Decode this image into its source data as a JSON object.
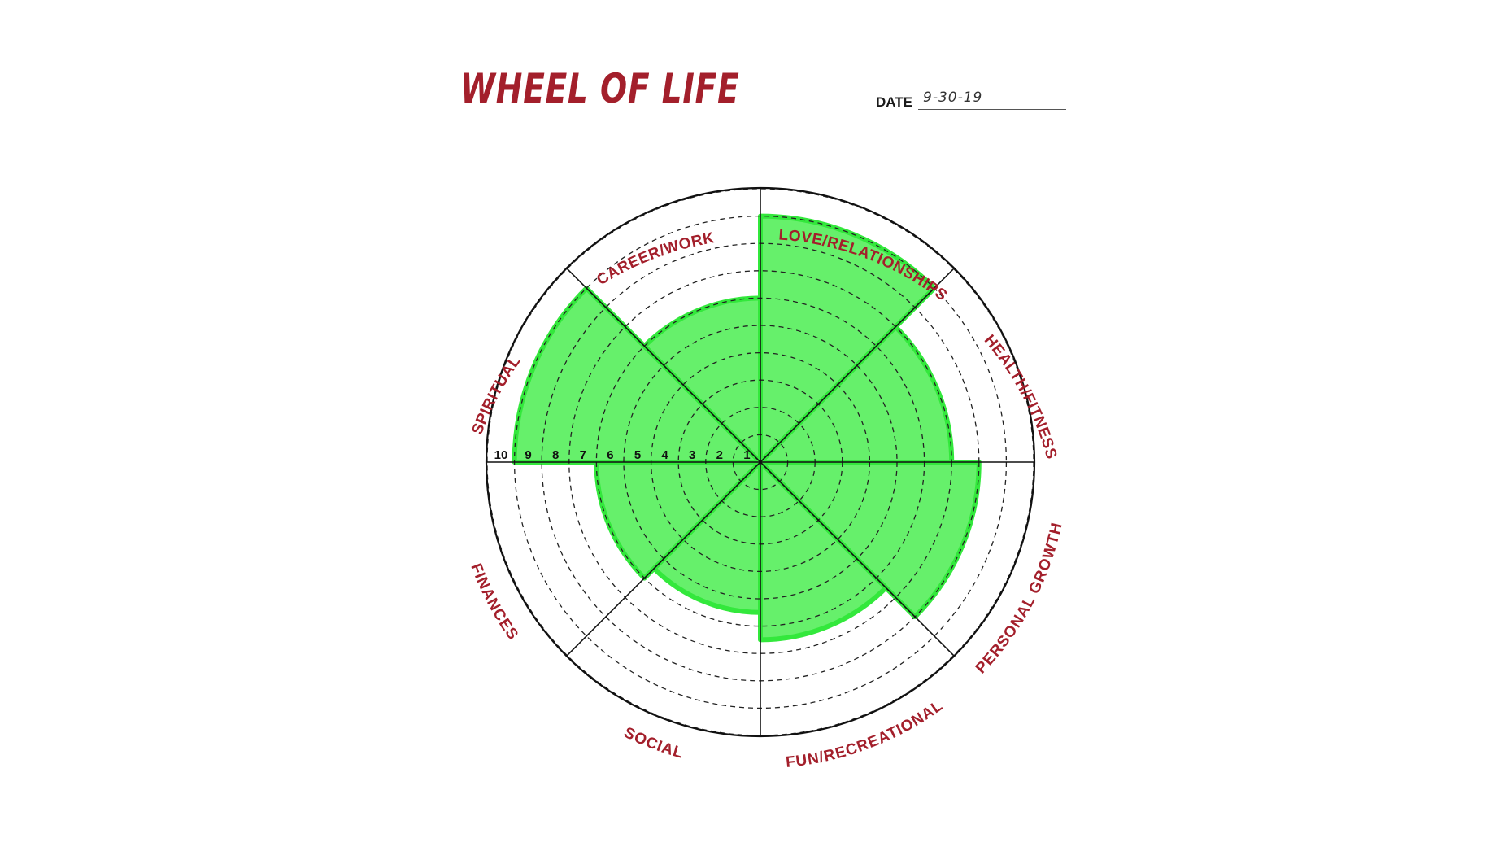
{
  "title": "WHEEL OF LIFE",
  "date": {
    "label": "DATE",
    "value": "9-30-19"
  },
  "colors": {
    "accent": "#a31f2b",
    "fill": "#66f06b",
    "fill_stroke": "#33e83c",
    "line": "#111111"
  },
  "scale_labels": [
    "1",
    "2",
    "3",
    "4",
    "5",
    "6",
    "7",
    "8",
    "9",
    "10"
  ],
  "chart_data": {
    "type": "radial-bar",
    "scale_max": 10,
    "categories": [
      "LOVE/RELATIONSHIPS",
      "HEALTH/FITNESS",
      "PERSONAL GROWTH",
      "FUN/RECREATIONAL",
      "SOCIAL",
      "FINANCES",
      "SPIRITUAL",
      "CAREER/WORK"
    ],
    "values": [
      9,
      7,
      8,
      6.5,
      5.5,
      6,
      9,
      6
    ]
  }
}
